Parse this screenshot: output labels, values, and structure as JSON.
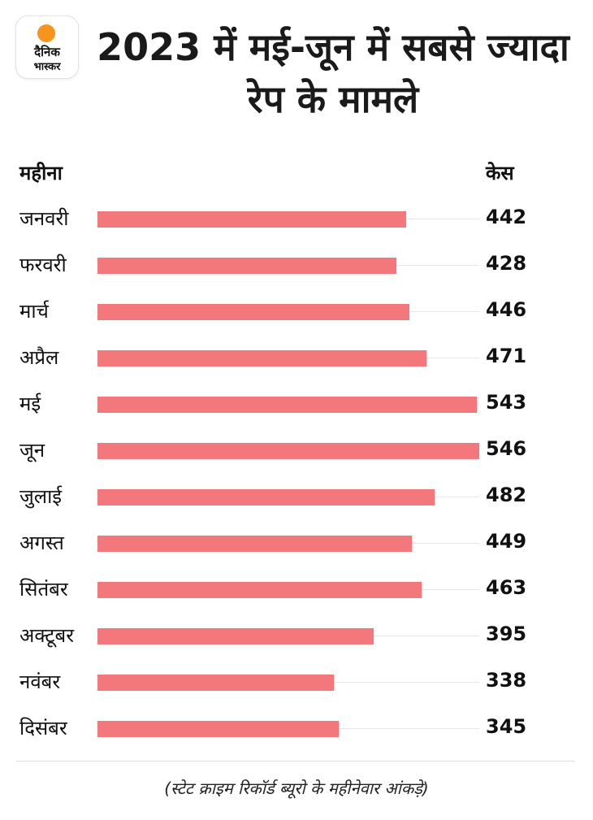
{
  "logo": {
    "line1": "दैनिक",
    "line2": "भास्कर",
    "accent_color": "#f7941d"
  },
  "title": "2023 में  मई-जून में सबसे ज्यादा रेप के मामले",
  "chart_data": {
    "type": "bar",
    "orientation": "horizontal",
    "title": "2023 में  मई-जून में सबसे ज्यादा रेप के मामले",
    "category_header": "महीना",
    "value_header": "केस",
    "categories": [
      "जनवरी",
      "फरवरी",
      "मार्च",
      "अप्रैल",
      "मई",
      "जून",
      "जुलाई",
      "अगस्त",
      "सितंबर",
      "अक्टूबर",
      "नवंबर",
      "दिसंबर"
    ],
    "values": [
      442,
      428,
      446,
      471,
      543,
      546,
      482,
      449,
      463,
      395,
      338,
      345
    ],
    "value_labels": [
      "442",
      "428",
      "446",
      "471",
      "543",
      "546",
      "482",
      "449",
      "463",
      "395",
      "338",
      "345"
    ],
    "xlim": [
      0,
      546
    ],
    "bar_color": "#f2787b",
    "grid": false
  },
  "source_note": "(स्टेट क्राइम रिकॉर्ड ब्यूरो के महीनेवार आंकड़े)"
}
